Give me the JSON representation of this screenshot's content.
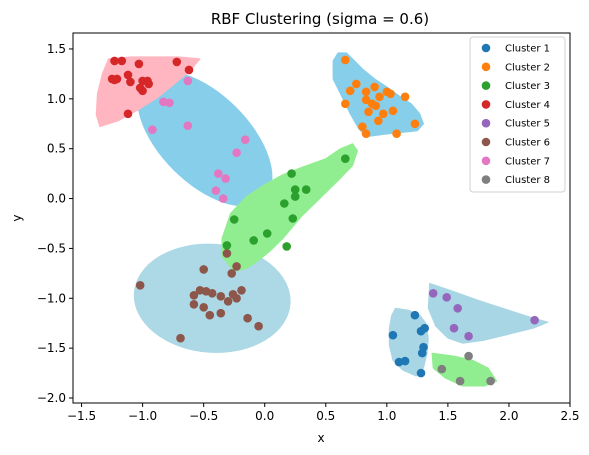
{
  "chart_data": {
    "type": "scatter",
    "title": "RBF Clustering (sigma = 0.6)",
    "xlabel": "x",
    "ylabel": "y",
    "xlim": [
      -1.57,
      2.5
    ],
    "ylim": [
      -2.05,
      1.66
    ],
    "xticks": [
      -1.5,
      -1.0,
      -0.5,
      0.0,
      0.5,
      1.0,
      1.5,
      2.0,
      2.5
    ],
    "xtick_labels": [
      "−1.5",
      "−1.0",
      "−0.5",
      "0.0",
      "0.5",
      "1.0",
      "1.5",
      "2.0",
      "2.5"
    ],
    "yticks": [
      1.5,
      1.0,
      0.5,
      0.0,
      -0.5,
      -1.0,
      -1.5,
      -2.0
    ],
    "ytick_labels": [
      "1.5",
      "1.0",
      "0.5",
      "0.0",
      "−0.5",
      "−1.0",
      "−1.5",
      "−2.0"
    ],
    "grid": false,
    "legend_position": "upper-right",
    "series": [
      {
        "name": "Cluster 1",
        "color": "#1f77b4",
        "region_color": "#a9d6e5",
        "points": [
          [
            1.05,
            -1.37
          ],
          [
            1.23,
            -1.17
          ],
          [
            1.28,
            -1.33
          ],
          [
            1.31,
            -1.3
          ],
          [
            1.1,
            -1.64
          ],
          [
            1.15,
            -1.63
          ],
          [
            1.29,
            -1.55
          ],
          [
            1.3,
            -1.49
          ],
          [
            1.28,
            -1.75
          ]
        ],
        "region": [
          [
            1.07,
            -1.1
          ],
          [
            1.18,
            -1.12
          ],
          [
            1.27,
            -1.17
          ],
          [
            1.32,
            -1.25
          ],
          [
            1.34,
            -1.4
          ],
          [
            1.33,
            -1.55
          ],
          [
            1.3,
            -1.7
          ],
          [
            1.24,
            -1.78
          ],
          [
            1.13,
            -1.72
          ],
          [
            1.05,
            -1.62
          ],
          [
            1.02,
            -1.47
          ],
          [
            1.02,
            -1.3
          ],
          [
            1.04,
            -1.17
          ]
        ]
      },
      {
        "name": "Cluster 2",
        "color": "#ff7f0e",
        "region_color": "#87ceeb",
        "points": [
          [
            0.66,
            1.39
          ],
          [
            0.66,
            0.95
          ],
          [
            0.7,
            1.08
          ],
          [
            0.75,
            1.15
          ],
          [
            0.8,
            0.72
          ],
          [
            0.83,
            0.99
          ],
          [
            0.83,
            1.07
          ],
          [
            0.83,
            0.65
          ],
          [
            0.85,
            0.87
          ],
          [
            0.88,
            0.95
          ],
          [
            0.9,
            1.12
          ],
          [
            0.91,
            0.93
          ],
          [
            0.93,
            0.78
          ],
          [
            0.94,
            1.02
          ],
          [
            0.97,
            0.85
          ],
          [
            1.0,
            1.07
          ],
          [
            1.03,
            1.05
          ],
          [
            1.05,
            0.88
          ],
          [
            1.08,
            0.65
          ],
          [
            1.15,
            1.02
          ],
          [
            1.23,
            0.75
          ]
        ],
        "region": [
          [
            0.67,
            1.46
          ],
          [
            0.72,
            1.4
          ],
          [
            0.8,
            1.3
          ],
          [
            0.9,
            1.2
          ],
          [
            1.0,
            1.12
          ],
          [
            1.1,
            1.03
          ],
          [
            1.2,
            0.95
          ],
          [
            1.27,
            0.85
          ],
          [
            1.3,
            0.75
          ],
          [
            1.25,
            0.68
          ],
          [
            1.1,
            0.66
          ],
          [
            0.95,
            0.64
          ],
          [
            0.83,
            0.62
          ],
          [
            0.77,
            0.7
          ],
          [
            0.7,
            0.85
          ],
          [
            0.64,
            1.0
          ],
          [
            0.56,
            1.2
          ],
          [
            0.56,
            1.38
          ],
          [
            0.6,
            1.46
          ]
        ]
      },
      {
        "name": "Cluster 3",
        "color": "#2ca02c",
        "region_color": "#90ee90",
        "points": [
          [
            0.22,
            0.25
          ],
          [
            0.25,
            0.09
          ],
          [
            0.25,
            0.02
          ],
          [
            0.34,
            0.09
          ],
          [
            0.66,
            0.4
          ],
          [
            0.16,
            -0.05
          ],
          [
            0.23,
            -0.2
          ],
          [
            -0.25,
            -0.21
          ],
          [
            -0.09,
            -0.42
          ],
          [
            0.02,
            -0.35
          ],
          [
            0.18,
            -0.48
          ],
          [
            -0.31,
            -0.47
          ]
        ],
        "region": [
          [
            0.5,
            0.4
          ],
          [
            0.62,
            0.5
          ],
          [
            0.72,
            0.55
          ],
          [
            0.76,
            0.48
          ],
          [
            0.72,
            0.33
          ],
          [
            0.6,
            0.18
          ],
          [
            0.45,
            0.0
          ],
          [
            0.3,
            -0.18
          ],
          [
            0.15,
            -0.4
          ],
          [
            0.05,
            -0.52
          ],
          [
            -0.05,
            -0.62
          ],
          [
            -0.15,
            -0.7
          ],
          [
            -0.25,
            -0.73
          ],
          [
            -0.35,
            -0.58
          ],
          [
            -0.35,
            -0.4
          ],
          [
            -0.28,
            -0.15
          ],
          [
            -0.15,
            0.02
          ],
          [
            0.0,
            0.14
          ],
          [
            0.15,
            0.24
          ],
          [
            0.32,
            0.32
          ]
        ]
      },
      {
        "name": "Cluster 4",
        "color": "#d62728",
        "region_color": "#ffb6c1",
        "points": [
          [
            -1.23,
            1.38
          ],
          [
            -1.17,
            1.38
          ],
          [
            -1.25,
            1.2
          ],
          [
            -1.21,
            1.2
          ],
          [
            -1.23,
            1.19
          ],
          [
            -1.12,
            1.24
          ],
          [
            -1.1,
            1.17
          ],
          [
            -1.03,
            1.35
          ],
          [
            -1.02,
            1.11
          ],
          [
            -1.0,
            1.18
          ],
          [
            -0.95,
            1.15
          ],
          [
            -0.96,
            1.18
          ],
          [
            -1.0,
            1.08
          ],
          [
            -0.72,
            1.37
          ],
          [
            -0.62,
            1.29
          ],
          [
            -1.12,
            0.85
          ]
        ],
        "region": [
          [
            -1.28,
            1.4
          ],
          [
            -1.1,
            1.42
          ],
          [
            -0.9,
            1.42
          ],
          [
            -0.7,
            1.42
          ],
          [
            -0.53,
            1.4
          ],
          [
            -0.62,
            1.27
          ],
          [
            -0.76,
            1.13
          ],
          [
            -0.88,
            1.01
          ],
          [
            -1.05,
            0.88
          ],
          [
            -1.2,
            0.78
          ],
          [
            -1.35,
            0.72
          ],
          [
            -1.38,
            0.84
          ],
          [
            -1.37,
            1.05
          ],
          [
            -1.33,
            1.25
          ]
        ]
      },
      {
        "name": "Cluster 5",
        "color": "#9467bd",
        "region_color": "#a9d6e5",
        "points": [
          [
            1.38,
            -0.95
          ],
          [
            1.49,
            -0.99
          ],
          [
            1.58,
            -1.1
          ],
          [
            1.55,
            -1.3
          ],
          [
            1.67,
            -1.38
          ],
          [
            2.21,
            -1.22
          ]
        ],
        "region": [
          [
            1.35,
            -0.85
          ],
          [
            1.52,
            -0.92
          ],
          [
            1.75,
            -1.02
          ],
          [
            1.95,
            -1.1
          ],
          [
            2.15,
            -1.18
          ],
          [
            2.32,
            -1.24
          ],
          [
            2.2,
            -1.3
          ],
          [
            2.0,
            -1.36
          ],
          [
            1.8,
            -1.42
          ],
          [
            1.62,
            -1.45
          ],
          [
            1.5,
            -1.4
          ],
          [
            1.4,
            -1.28
          ],
          [
            1.34,
            -1.1
          ]
        ]
      },
      {
        "name": "Cluster 6",
        "color": "#8c564b",
        "region_color": "#add8e6",
        "points": [
          [
            -0.5,
            -0.71
          ],
          [
            -0.31,
            -0.55
          ],
          [
            -0.27,
            -0.75
          ],
          [
            -0.23,
            -0.68
          ],
          [
            -1.02,
            -0.87
          ],
          [
            -0.58,
            -0.97
          ],
          [
            -0.53,
            -0.92
          ],
          [
            -0.48,
            -0.93
          ],
          [
            -0.43,
            -0.95
          ],
          [
            -0.36,
            -0.98
          ],
          [
            -0.58,
            -1.06
          ],
          [
            -0.5,
            -1.09
          ],
          [
            -0.3,
            -1.03
          ],
          [
            -0.26,
            -0.96
          ],
          [
            -0.19,
            -0.92
          ],
          [
            -0.23,
            -1.0
          ],
          [
            -0.45,
            -1.17
          ],
          [
            -0.36,
            -1.15
          ],
          [
            -0.14,
            -1.2
          ],
          [
            -0.05,
            -1.28
          ],
          [
            -0.69,
            -1.4
          ]
        ]
      },
      {
        "name": "Cluster 7",
        "color": "#e377c2",
        "region_color": "#87ceeb",
        "points": [
          [
            -0.63,
            1.18
          ],
          [
            -0.83,
            0.97
          ],
          [
            -0.78,
            0.96
          ],
          [
            -0.92,
            0.69
          ],
          [
            -0.63,
            0.73
          ],
          [
            -0.16,
            0.59
          ],
          [
            -0.23,
            0.46
          ],
          [
            -0.38,
            0.25
          ],
          [
            -0.32,
            0.2
          ],
          [
            -0.4,
            0.08
          ],
          [
            -0.34,
            0.0
          ]
        ]
      },
      {
        "name": "Cluster 8",
        "color": "#7f7f7f",
        "region_color": "#90ee90",
        "points": [
          [
            1.45,
            -1.71
          ],
          [
            1.67,
            -1.58
          ],
          [
            1.6,
            -1.83
          ],
          [
            1.85,
            -1.83
          ]
        ],
        "region": [
          [
            1.37,
            -1.55
          ],
          [
            1.55,
            -1.58
          ],
          [
            1.7,
            -1.62
          ],
          [
            1.83,
            -1.7
          ],
          [
            1.9,
            -1.83
          ],
          [
            1.8,
            -1.88
          ],
          [
            1.62,
            -1.88
          ],
          [
            1.48,
            -1.8
          ],
          [
            1.38,
            -1.7
          ]
        ]
      }
    ]
  }
}
